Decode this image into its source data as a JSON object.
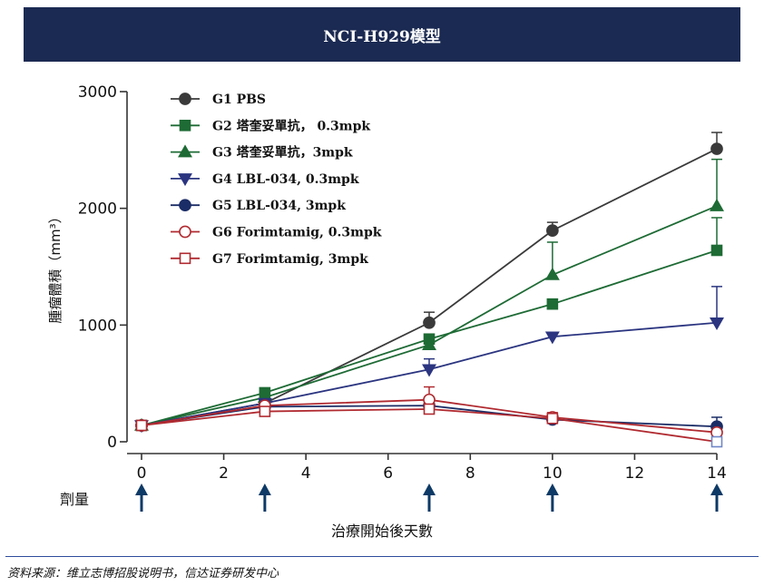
{
  "banner": {
    "title": "NCI-H929模型"
  },
  "footer": {
    "source": "资料来源：维立志博招股说明书，信达证券研发中心"
  },
  "dose": {
    "label": "劑量",
    "days": [
      0,
      3,
      7,
      10,
      14
    ],
    "arrow_color": "#0d3a66"
  },
  "chart_data": {
    "type": "line",
    "title": "",
    "xlabel": "治療開始後天數",
    "ylabel": "腫瘤體積（mm³）",
    "xlim": [
      0,
      14
    ],
    "ylim": [
      0,
      3000
    ],
    "xticks": [
      0,
      2,
      4,
      6,
      8,
      10,
      12,
      14
    ],
    "yticks": [
      0,
      1000,
      2000,
      3000
    ],
    "x": [
      0,
      3,
      7,
      10,
      14
    ],
    "legend_position": "top-left",
    "grid": false,
    "series": [
      {
        "name": "G1 PBS",
        "color": "#3a3a3a",
        "marker": "circle-filled",
        "values": [
          140,
          330,
          1020,
          1810,
          2510
        ],
        "error": [
          0,
          0,
          90,
          70,
          140
        ]
      },
      {
        "name": "G2 塔奎妥單抗， 0.3mpk",
        "color": "#1e6b35",
        "marker": "square-filled",
        "values": [
          140,
          420,
          880,
          1180,
          1640
        ],
        "error": [
          0,
          0,
          40,
          0,
          280
        ]
      },
      {
        "name": "G3 塔奎妥單抗，3mpk",
        "color": "#1e6b35",
        "marker": "triangle-up-filled",
        "values": [
          140,
          380,
          830,
          1430,
          2020
        ],
        "error": [
          0,
          0,
          0,
          280,
          400
        ]
      },
      {
        "name": "G4 LBL-034, 0.3mpk",
        "color": "#2b3580",
        "marker": "triangle-down-filled",
        "values": [
          140,
          330,
          620,
          900,
          1020
        ],
        "error": [
          0,
          0,
          90,
          0,
          310
        ]
      },
      {
        "name": "G5 LBL-034, 3mpk",
        "color": "#1b2d66",
        "marker": "circle-filled",
        "values": [
          140,
          300,
          310,
          190,
          130
        ],
        "error": [
          0,
          0,
          0,
          0,
          80
        ]
      },
      {
        "name": "G6 Forimtamig, 0.3mpk",
        "color": "#b02a30",
        "marker": "circle-open",
        "values": [
          140,
          310,
          360,
          210,
          80
        ],
        "error": [
          0,
          0,
          110,
          40,
          0
        ]
      },
      {
        "name": "G7 Forimtamig, 3mpk",
        "color": "#b02a30",
        "marker": "square-open",
        "values": [
          140,
          260,
          280,
          200,
          0
        ],
        "error": [
          0,
          0,
          0,
          0,
          0
        ]
      }
    ]
  }
}
